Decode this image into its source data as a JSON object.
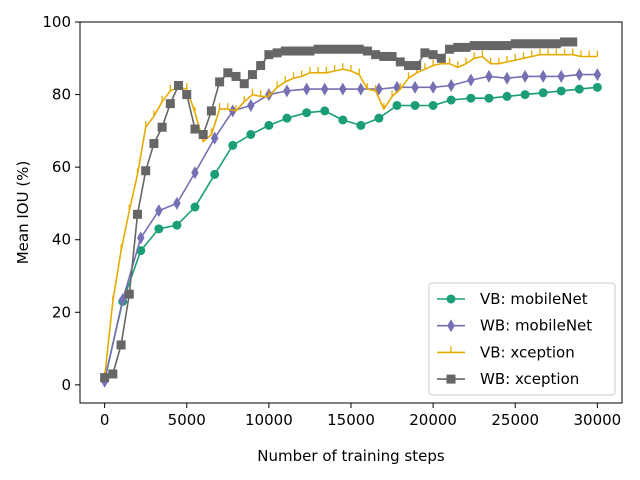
{
  "chart_data": {
    "type": "line",
    "title": "",
    "xlabel": "Number of training steps",
    "ylabel": "Mean IOU (%)",
    "xlim": [
      -1500,
      31500
    ],
    "ylim": [
      -5,
      100
    ],
    "xticks": [
      0,
      5000,
      10000,
      15000,
      20000,
      25000,
      30000
    ],
    "yticks": [
      0,
      20,
      40,
      60,
      80,
      100
    ],
    "grid": false,
    "legend_position": "lower-right",
    "series": [
      {
        "name": "VB: mobileNet",
        "color": "#1b9e77",
        "marker": "circle",
        "x": [
          0,
          1100,
          2200,
          3300,
          4400,
          5500,
          6700,
          7800,
          8900,
          10000,
          11100,
          12300,
          13400,
          14500,
          15600,
          16700,
          17800,
          18900,
          20000,
          21100,
          22300,
          23400,
          24500,
          25600,
          26700,
          27800,
          28900,
          30000
        ],
        "y": [
          1.5,
          23,
          37,
          43,
          44,
          49,
          58,
          66,
          69,
          71.5,
          73.5,
          75,
          75.5,
          73,
          71.5,
          73.5,
          77,
          77,
          77,
          78.5,
          79,
          79,
          79.5,
          80,
          80.5,
          81,
          81.5,
          82
        ]
      },
      {
        "name": "WB: mobileNet",
        "color": "#7570b3",
        "marker": "thin_diamond",
        "x": [
          0,
          1100,
          2200,
          3300,
          4400,
          5500,
          6700,
          7800,
          8900,
          10000,
          11100,
          12300,
          13400,
          14500,
          15600,
          16700,
          17800,
          18900,
          20000,
          21100,
          22300,
          23400,
          24500,
          25600,
          26700,
          27800,
          28900,
          30000
        ],
        "y": [
          1,
          23.5,
          40.5,
          48,
          50,
          58.5,
          68,
          75.5,
          77,
          80,
          81,
          81.5,
          81.5,
          81.5,
          81.5,
          81.5,
          82,
          82,
          82,
          82.5,
          84,
          85,
          84.5,
          85,
          85,
          85,
          85.5,
          85.5
        ]
      },
      {
        "name": "VB: xception",
        "color": "#e6ab02",
        "marker": "tickup",
        "x": [
          0,
          500,
          1000,
          1500,
          2000,
          2500,
          3000,
          3500,
          4000,
          4500,
          5000,
          5500,
          6000,
          6500,
          7000,
          7500,
          8000,
          8500,
          9000,
          9500,
          10000,
          10500,
          11000,
          11500,
          12000,
          12500,
          13000,
          13500,
          14000,
          14500,
          15000,
          15500,
          16000,
          16500,
          17000,
          17500,
          18000,
          18500,
          19000,
          19500,
          20000,
          20500,
          21000,
          21500,
          22000,
          22500,
          23000,
          23500,
          24000,
          24500,
          25000,
          25500,
          26000,
          26500,
          27000,
          27500,
          28000,
          28500,
          29000,
          29500,
          30000
        ],
        "y": [
          2,
          23,
          37,
          48,
          58,
          71,
          74,
          78,
          81,
          82,
          81.5,
          75,
          67,
          69,
          76,
          76,
          75.5,
          78,
          80,
          79.5,
          79.5,
          82,
          83.5,
          84.5,
          85,
          86,
          86,
          86,
          86.5,
          87,
          86.5,
          85.5,
          81.5,
          81,
          76,
          79.5,
          81.5,
          84.5,
          86,
          87,
          88,
          88.5,
          88.5,
          87.5,
          88.5,
          90,
          90.5,
          88.5,
          88.5,
          89,
          89.5,
          90,
          90.5,
          91,
          91,
          91,
          91,
          91,
          90.5,
          90.5,
          90.5
        ]
      },
      {
        "name": "WB: xception",
        "color": "#666666",
        "marker": "square",
        "x": [
          0,
          500,
          1000,
          1500,
          2000,
          2500,
          3000,
          3500,
          4000,
          4500,
          5000,
          5500,
          6000,
          6500,
          7000,
          7500,
          8000,
          8500,
          9000,
          9500,
          10000,
          10500,
          11000,
          11500,
          12000,
          12500,
          13000,
          13500,
          14000,
          14500,
          15000,
          15500,
          16000,
          16500,
          17000,
          17500,
          18000,
          18500,
          19000,
          19500,
          20000,
          20500,
          21000,
          21500,
          22000,
          22500,
          23000,
          23500,
          24000,
          24500,
          25000,
          25500,
          26000,
          26500,
          27000,
          27500,
          28000,
          28500
        ],
        "y": [
          2,
          3,
          11,
          25,
          47,
          59,
          66.5,
          71,
          77.5,
          82.5,
          80,
          70.5,
          69,
          75.5,
          83.5,
          86,
          85,
          83,
          85.5,
          88,
          91,
          91.5,
          92,
          92,
          92,
          92,
          92.5,
          92.5,
          92.5,
          92.5,
          92.5,
          92.5,
          92,
          91,
          90.5,
          90.5,
          89,
          88,
          88,
          91.5,
          91,
          90,
          92.5,
          93,
          93,
          93.5,
          93.5,
          93.5,
          93.5,
          93.5,
          94,
          94,
          94,
          94,
          94,
          94,
          94.5,
          94.5
        ]
      }
    ]
  }
}
